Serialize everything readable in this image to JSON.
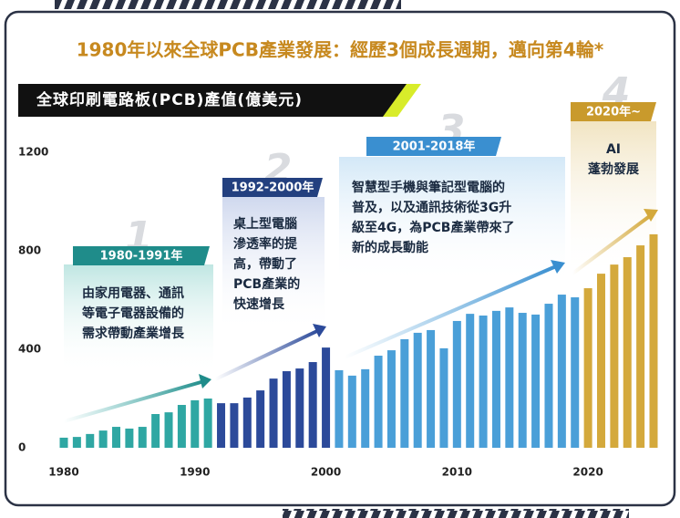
{
  "chart_data": {
    "type": "bar",
    "title": "1980年以來全球PCB產業發展：經歷3個成長週期，邁向第4輪*",
    "subtitle": "全球印刷電路板(PCB)產值(億美元)",
    "x": [
      1980,
      1981,
      1982,
      1983,
      1984,
      1985,
      1986,
      1987,
      1988,
      1989,
      1990,
      1991,
      1992,
      1993,
      1994,
      1995,
      1996,
      1997,
      1998,
      1999,
      2000,
      2001,
      2002,
      2003,
      2004,
      2005,
      2006,
      2007,
      2008,
      2009,
      2010,
      2011,
      2012,
      2013,
      2014,
      2015,
      2016,
      2017,
      2018,
      2019,
      2020,
      2021,
      2022,
      2023,
      2024,
      2025
    ],
    "values": [
      41,
      44,
      56,
      70,
      85,
      78,
      85,
      137,
      144,
      174,
      193,
      200,
      181,
      181,
      204,
      233,
      281,
      311,
      322,
      348,
      407,
      315,
      293,
      319,
      374,
      396,
      441,
      467,
      478,
      404,
      515,
      544,
      537,
      556,
      570,
      548,
      541,
      585,
      622,
      611,
      648,
      707,
      744,
      774,
      822,
      867
    ],
    "colors": [
      "#2fa7a3",
      "#2fa7a3",
      "#2fa7a3",
      "#2fa7a3",
      "#2fa7a3",
      "#2fa7a3",
      "#2fa7a3",
      "#2fa7a3",
      "#2fa7a3",
      "#2fa7a3",
      "#2fa7a3",
      "#2fa7a3",
      "#2c4a9a",
      "#2c4a9a",
      "#2c4a9a",
      "#2c4a9a",
      "#2c4a9a",
      "#2c4a9a",
      "#2c4a9a",
      "#2c4a9a",
      "#2c4a9a",
      "#4a9fd8",
      "#4a9fd8",
      "#4a9fd8",
      "#4a9fd8",
      "#4a9fd8",
      "#4a9fd8",
      "#4a9fd8",
      "#4a9fd8",
      "#4a9fd8",
      "#4a9fd8",
      "#4a9fd8",
      "#4a9fd8",
      "#4a9fd8",
      "#4a9fd8",
      "#4a9fd8",
      "#4a9fd8",
      "#4a9fd8",
      "#4a9fd8",
      "#4a9fd8",
      "#d4a93c",
      "#d4a93c",
      "#d4a93c",
      "#d4a93c",
      "#d4a93c",
      "#d4a93c"
    ],
    "xlim": [
      1980,
      2025
    ],
    "xticks": [
      1980,
      1990,
      2000,
      2010,
      2020
    ],
    "ylim": [
      0,
      1200
    ],
    "yticks": [
      0,
      400,
      800,
      1200
    ],
    "annotations": [
      {
        "number": "1",
        "period": "1980-1991年",
        "lines": [
          "由家用電器、通訊",
          "等電子電器設備的",
          "需求帶動產業增長"
        ]
      },
      {
        "number": "2",
        "period": "1992-2000年",
        "lines": [
          "桌上型電腦",
          "滲透率的提",
          "高，帶動了",
          "PCB產業的",
          "快速增長"
        ]
      },
      {
        "number": "3",
        "period": "2001-2018年",
        "lines": [
          "智慧型手機與筆記型電腦的",
          "普及，以及通訊技術從3G升",
          "級至4G，為PCB產業帶來了",
          "新的成長動能"
        ]
      },
      {
        "number": "4",
        "period": "2020年~",
        "lines": [
          "AI",
          "蓬勃發展"
        ]
      }
    ]
  }
}
